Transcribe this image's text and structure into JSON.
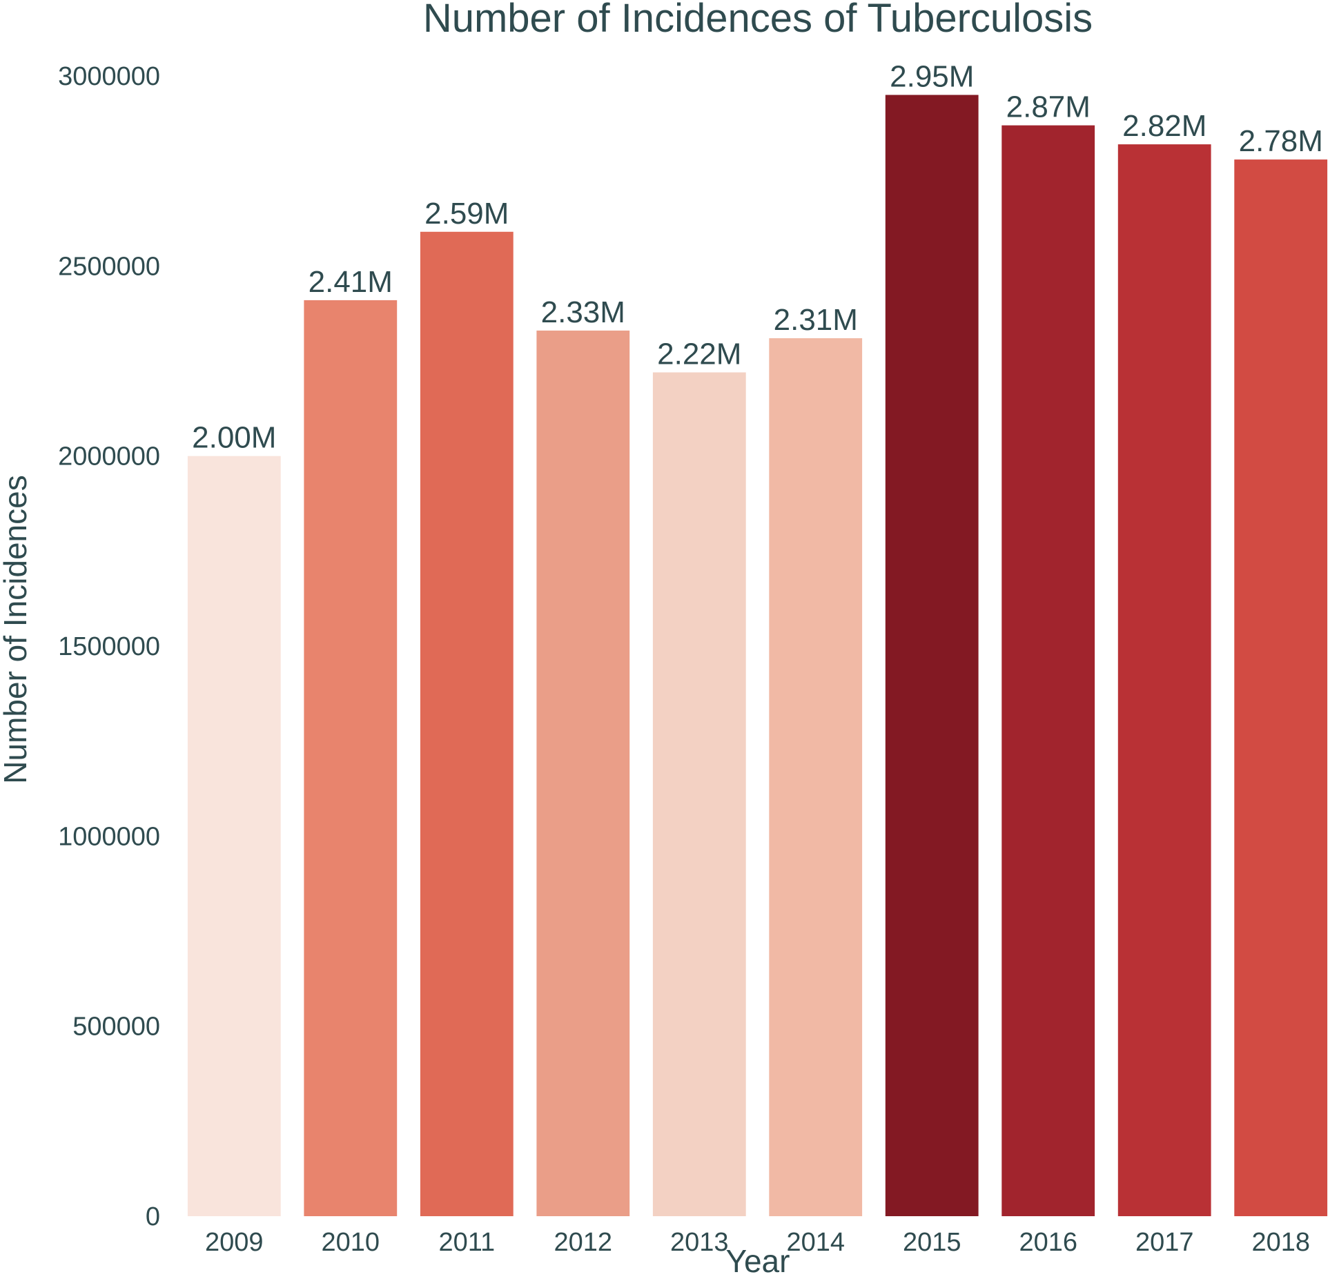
{
  "chart_data": {
    "type": "bar",
    "title": "Number of Incidences of Tuberculosis",
    "xlabel": "Year",
    "ylabel": "Number of Incidences",
    "categories": [
      "2009",
      "2010",
      "2011",
      "2012",
      "2013",
      "2014",
      "2015",
      "2016",
      "2017",
      "2018"
    ],
    "values": [
      2000000,
      2410000,
      2590000,
      2330000,
      2220000,
      2310000,
      2950000,
      2870000,
      2820000,
      2780000
    ],
    "data_labels": [
      "2.00M",
      "2.41M",
      "2.59M",
      "2.33M",
      "2.22M",
      "2.31M",
      "2.95M",
      "2.87M",
      "2.82M",
      "2.78M"
    ],
    "colors": [
      "#f9e4dc",
      "#e8846d",
      "#e06a56",
      "#ea9e88",
      "#f3d1c3",
      "#f1b9a5",
      "#831923",
      "#a1242d",
      "#b93135",
      "#d24b43"
    ],
    "yticks": [
      0,
      500000,
      1000000,
      1500000,
      2000000,
      2500000,
      3000000
    ],
    "ytick_labels": [
      "0",
      "500000",
      "1000000",
      "1500000",
      "2000000",
      "2500000",
      "3000000"
    ],
    "ylim": [
      0,
      3000000
    ],
    "grid": false,
    "legend": "none"
  }
}
